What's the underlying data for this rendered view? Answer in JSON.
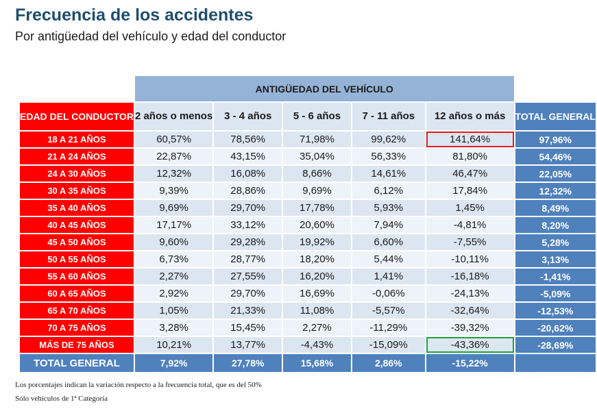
{
  "title": "Frecuencia de los accidentes",
  "subtitle": "Por antigüedad del vehículo y edad del conductor",
  "colors": {
    "title": "#1f4e6e",
    "row_header": "#ff0000",
    "group_header": "#95b3d7",
    "column_header": "#dce6f1",
    "total": "#4f81bd",
    "highlight_max": "#e31b1b",
    "highlight_min": "#1aa33b"
  },
  "chart_data": {
    "type": "table",
    "title": "Frecuencia de los accidentes",
    "subtitle": "Por antigüedad del vehículo y edad del conductor",
    "group_header": "ANTIGÜEDAD DEL VEHÍCULO",
    "row_header": "EDAD DEL CONDUCTOR",
    "total_header": "TOTAL GENERAL",
    "columns": [
      "2 años o menos",
      "3 - 4 años",
      "5 - 6 años",
      "7 - 11 años",
      "12 años o más"
    ],
    "rows": [
      {
        "label": "18 A 21 AÑOS",
        "values": [
          "60,57%",
          "78,56%",
          "71,98%",
          "99,62%",
          "141,64%"
        ],
        "total": "97,96%"
      },
      {
        "label": "21 A 24 AÑOS",
        "values": [
          "22,87%",
          "43,15%",
          "35,04%",
          "56,33%",
          "81,80%"
        ],
        "total": "54,46%"
      },
      {
        "label": "24 A 30 AÑOS",
        "values": [
          "12,32%",
          "16,08%",
          "8,66%",
          "14,61%",
          "46,47%"
        ],
        "total": "22,05%"
      },
      {
        "label": "30 A 35 AÑOS",
        "values": [
          "9,39%",
          "28,86%",
          "9,69%",
          "6,12%",
          "17,84%"
        ],
        "total": "12,32%"
      },
      {
        "label": "35 A 40 AÑOS",
        "values": [
          "9,69%",
          "29,70%",
          "17,78%",
          "5,93%",
          "1,45%"
        ],
        "total": "8,49%"
      },
      {
        "label": "40 A 45 AÑOS",
        "values": [
          "17,17%",
          "33,12%",
          "20,60%",
          "7,94%",
          "-4,81%"
        ],
        "total": "8,20%"
      },
      {
        "label": "45 A 50 AÑOS",
        "values": [
          "9,60%",
          "29,28%",
          "19,92%",
          "6,60%",
          "-7,55%"
        ],
        "total": "5,28%"
      },
      {
        "label": "50 A 55 AÑOS",
        "values": [
          "6,73%",
          "28,77%",
          "18,20%",
          "5,44%",
          "-10,11%"
        ],
        "total": "3,13%"
      },
      {
        "label": "55 A 60 AÑOS",
        "values": [
          "2,27%",
          "27,55%",
          "16,20%",
          "1,41%",
          "-16,18%"
        ],
        "total": "-1,41%"
      },
      {
        "label": "60 A 65 AÑOS",
        "values": [
          "2,92%",
          "29,70%",
          "16,69%",
          "-0,06%",
          "-24,13%"
        ],
        "total": "-5,09%"
      },
      {
        "label": "65 A 70 AÑOS",
        "values": [
          "1,05%",
          "21,33%",
          "11,08%",
          "-5,57%",
          "-32,64%"
        ],
        "total": "-12,53%"
      },
      {
        "label": "70 A 75 AÑOS",
        "values": [
          "3,28%",
          "15,45%",
          "2,27%",
          "-11,29%",
          "-39,32%"
        ],
        "total": "-20,62%"
      },
      {
        "label": "MÁS DE 75 AÑOS",
        "values": [
          "10,21%",
          "13,77%",
          "-4,43%",
          "-15,09%",
          "-43,36%"
        ],
        "total": "-28,69%"
      }
    ],
    "total_row": {
      "label": "TOTAL GENERAL",
      "values": [
        "7,92%",
        "27,78%",
        "15,68%",
        "2,86%",
        "-15,22%"
      ],
      "total": ""
    },
    "highlights": [
      {
        "row": 0,
        "col": 4,
        "color": "#e31b1b"
      },
      {
        "row": 12,
        "col": 4,
        "color": "#1aa33b"
      }
    ]
  },
  "notes": [
    "Los porcentajes indican la variación respecto a la frecuencia total, que es del 50%",
    "Sólo vehículos de 1ª Categoría"
  ]
}
